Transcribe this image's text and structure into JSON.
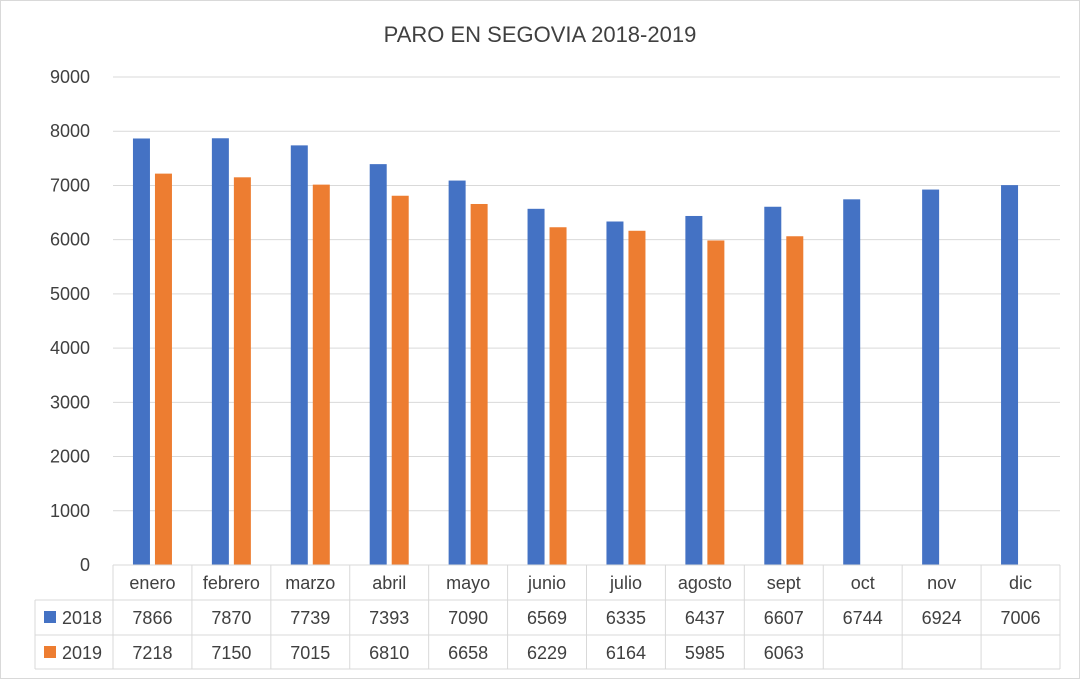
{
  "chart_data": {
    "type": "bar",
    "title": "PARO EN SEGOVIA 2018-2019",
    "categories": [
      "enero",
      "febrero",
      "marzo",
      "abril",
      "mayo",
      "junio",
      "julio",
      "agosto",
      "sept",
      "oct",
      "nov",
      "dic"
    ],
    "series": [
      {
        "name": "2018",
        "color": "#4472C4",
        "values": [
          7866,
          7870,
          7739,
          7393,
          7090,
          6569,
          6335,
          6437,
          6607,
          6744,
          6924,
          7006
        ]
      },
      {
        "name": "2019",
        "color": "#ED7D31",
        "values": [
          7218,
          7150,
          7015,
          6810,
          6658,
          6229,
          6164,
          5985,
          6063,
          null,
          null,
          null
        ]
      }
    ],
    "ylim": [
      0,
      9000
    ],
    "yticks": [
      0,
      1000,
      2000,
      3000,
      4000,
      5000,
      6000,
      7000,
      8000,
      9000
    ],
    "grid": true,
    "legend": "data-table-below"
  }
}
